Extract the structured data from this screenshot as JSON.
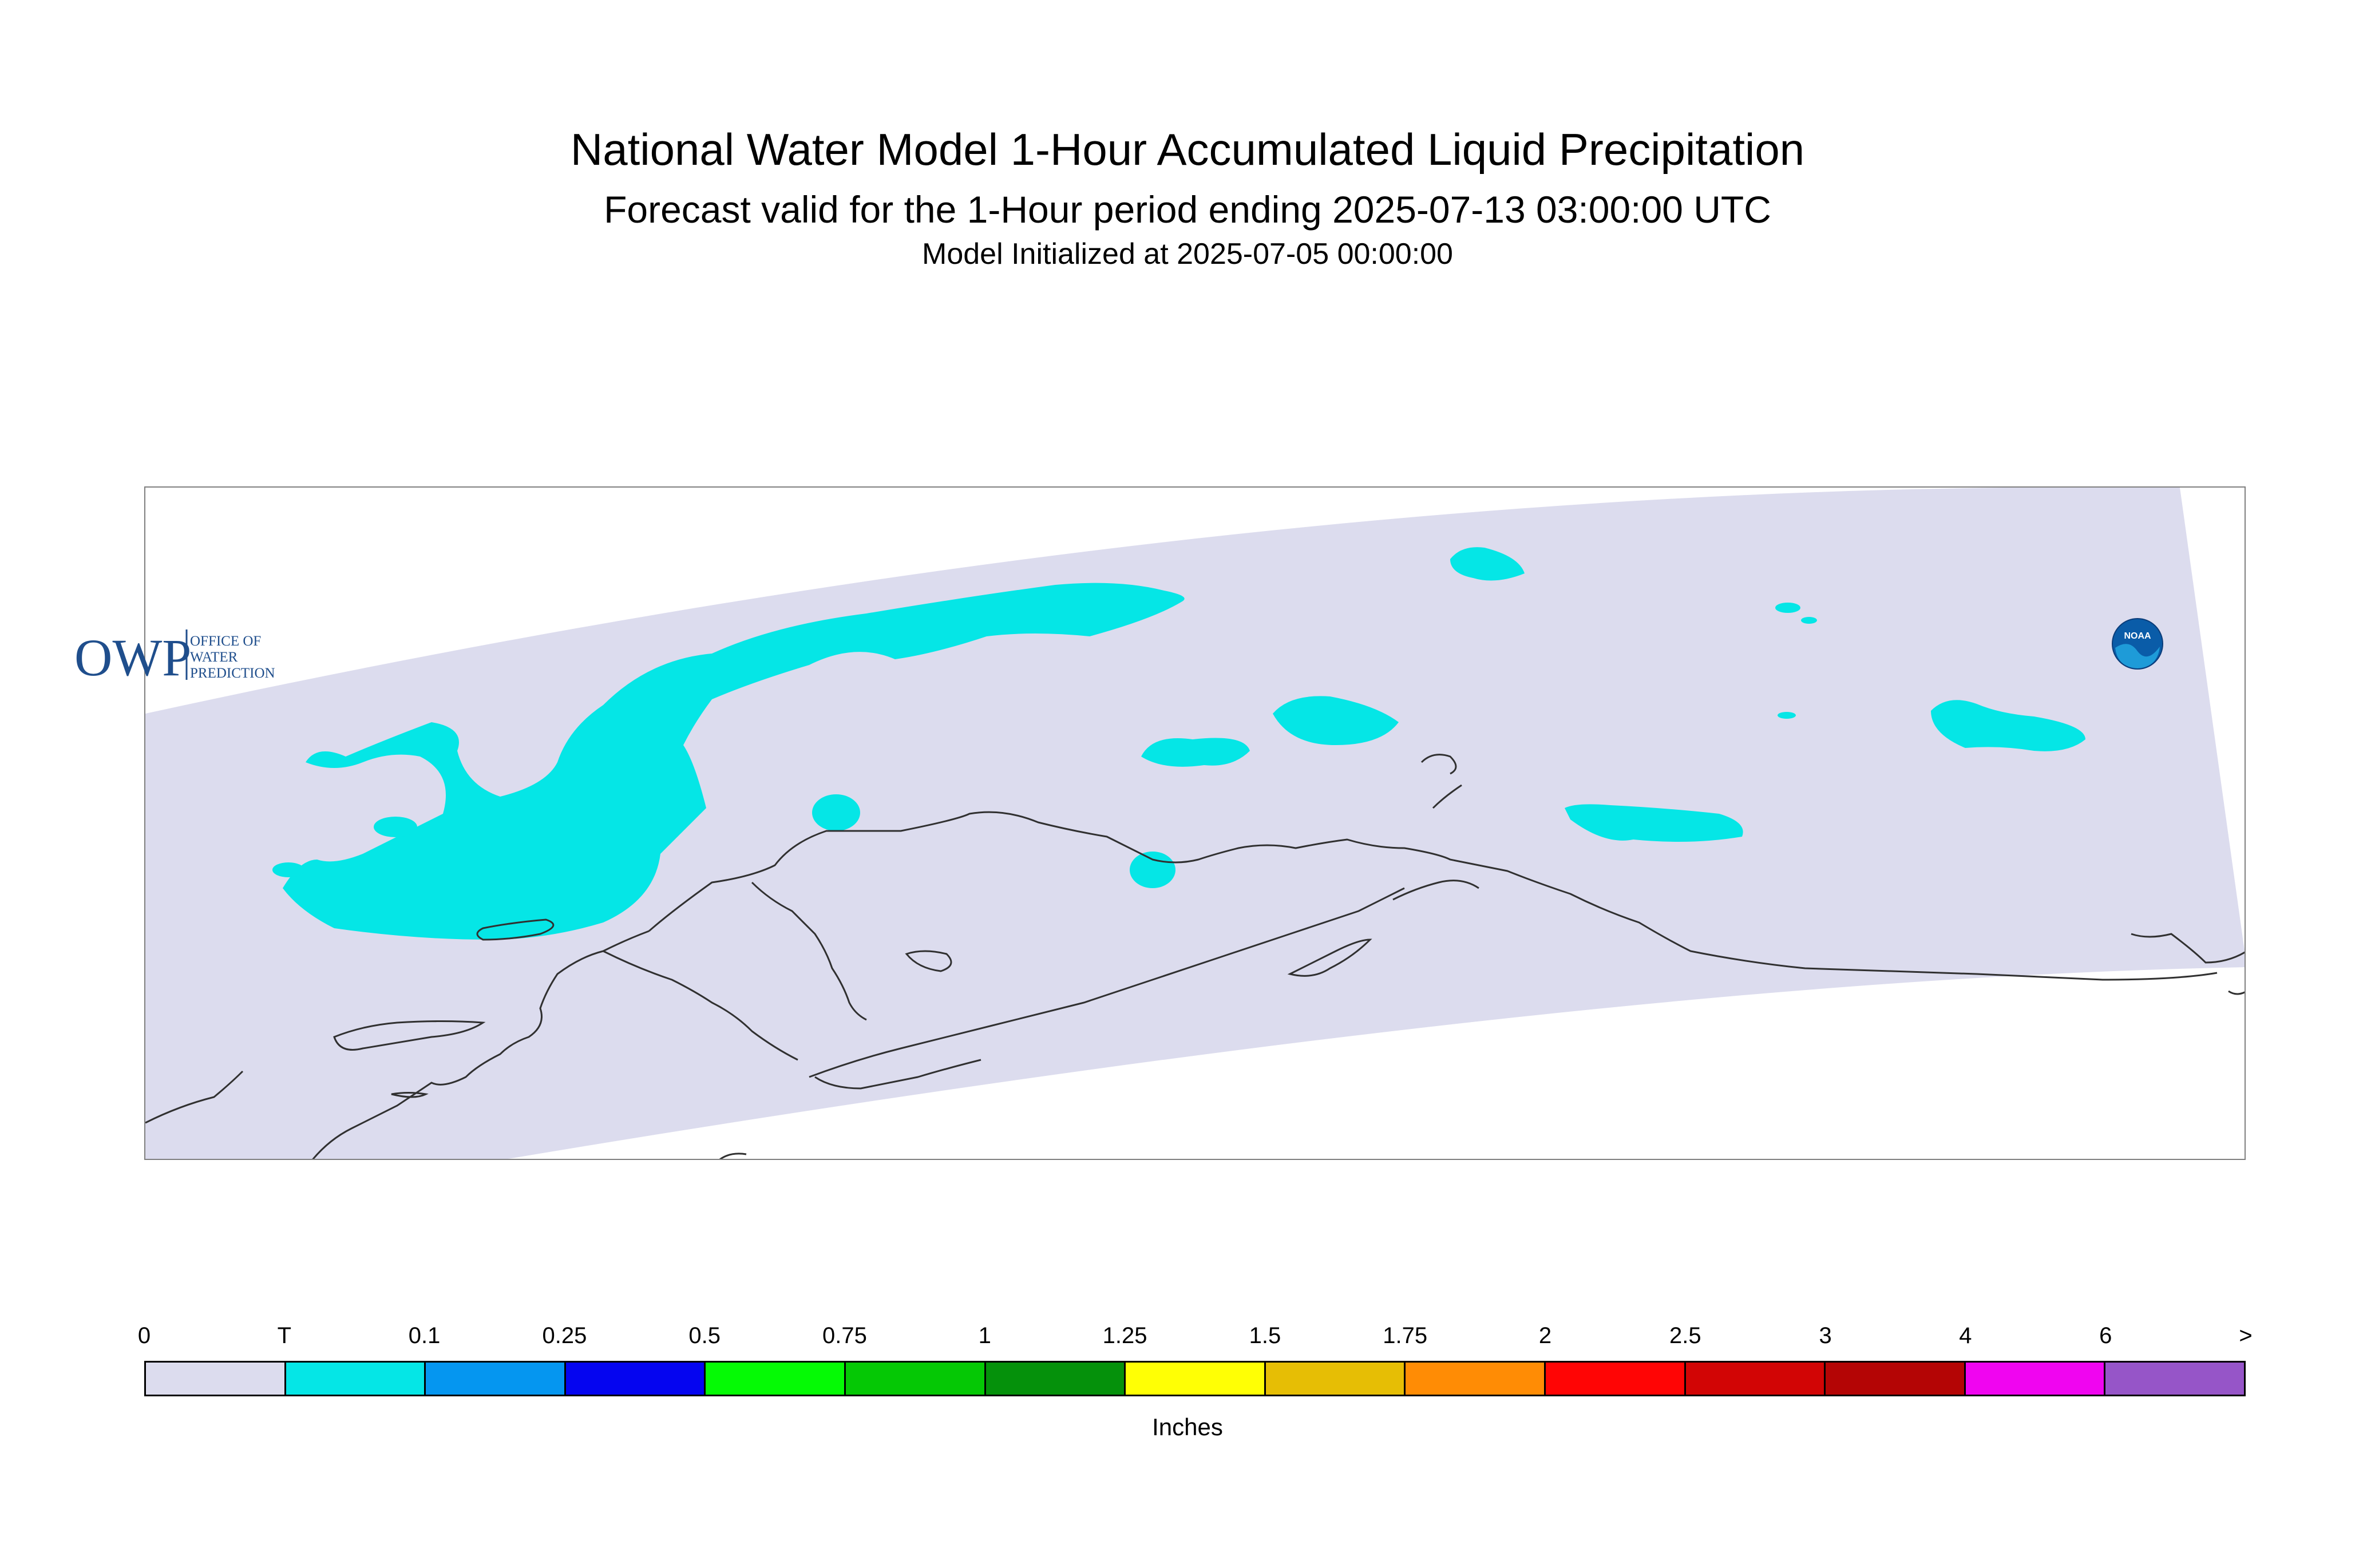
{
  "title": "National Water Model 1-Hour Accumulated Liquid Precipitation",
  "subtitle": "Forecast valid for the 1-Hour period ending 2025-07-13 03:00:00 UTC",
  "init": "Model Initialized at 2025-07-05 00:00:00",
  "map": {
    "region": "Alaska",
    "domain_color": "#dcdcee",
    "coastline_color": "#303030",
    "precip_color_trace": "#05e6e6",
    "precip_classes_present": [
      "T"
    ]
  },
  "logos": {
    "owp": {
      "mark": "OWP",
      "line1": "OFFICE OF",
      "line2": "WATER",
      "line3": "PREDICTION"
    },
    "noaa": {
      "mark": "NOAA"
    }
  },
  "legend": {
    "units": "Inches",
    "tick_labels": [
      "0",
      "T",
      "0.1",
      "0.25",
      "0.5",
      "0.75",
      "1",
      "1.25",
      "1.5",
      "1.75",
      "2",
      "2.5",
      "3",
      "4",
      "6",
      ">"
    ],
    "colors": [
      "#dcdcee",
      "#05e6e6",
      "#0596f0",
      "#0505f0",
      "#05fa05",
      "#05c805",
      "#05910b",
      "#ffff05",
      "#e6be05",
      "#ff8c05",
      "#ff0505",
      "#d20505",
      "#b40505",
      "#f005f0",
      "#9655c8"
    ]
  }
}
